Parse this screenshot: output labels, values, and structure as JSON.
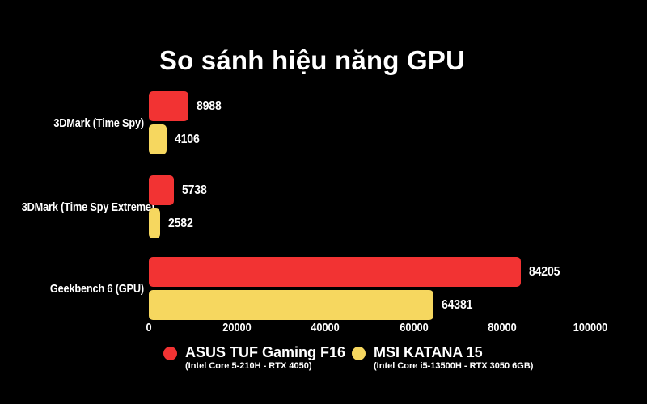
{
  "title": "So sánh hiệu năng GPU",
  "chart_data": {
    "type": "bar",
    "orientation": "horizontal",
    "title": "So sánh hiệu năng GPU",
    "categories": [
      "3DMark (Time Spy)",
      "3DMark (Time Spy Extreme)",
      "Geekbench 6 (GPU)"
    ],
    "series": [
      {
        "name": "ASUS TUF Gaming F16",
        "subtitle": "(Intel Core 5-210H - RTX 4050)",
        "color": "#f23333",
        "values": [
          8988,
          5738,
          84205
        ]
      },
      {
        "name": "MSI KATANA 15",
        "subtitle": "(Intel Core i5-13500H - RTX 3050 6GB)",
        "color": "#f6d75f",
        "values": [
          4106,
          2582,
          64381
        ]
      }
    ],
    "xlim": [
      0,
      100000
    ],
    "x_ticks": [
      "0",
      "20000",
      "40000",
      "60000",
      "80000",
      "100000"
    ],
    "grid": false,
    "legend_position": "bottom",
    "colors": {
      "background": "#000000",
      "text": "#ffffff"
    }
  }
}
